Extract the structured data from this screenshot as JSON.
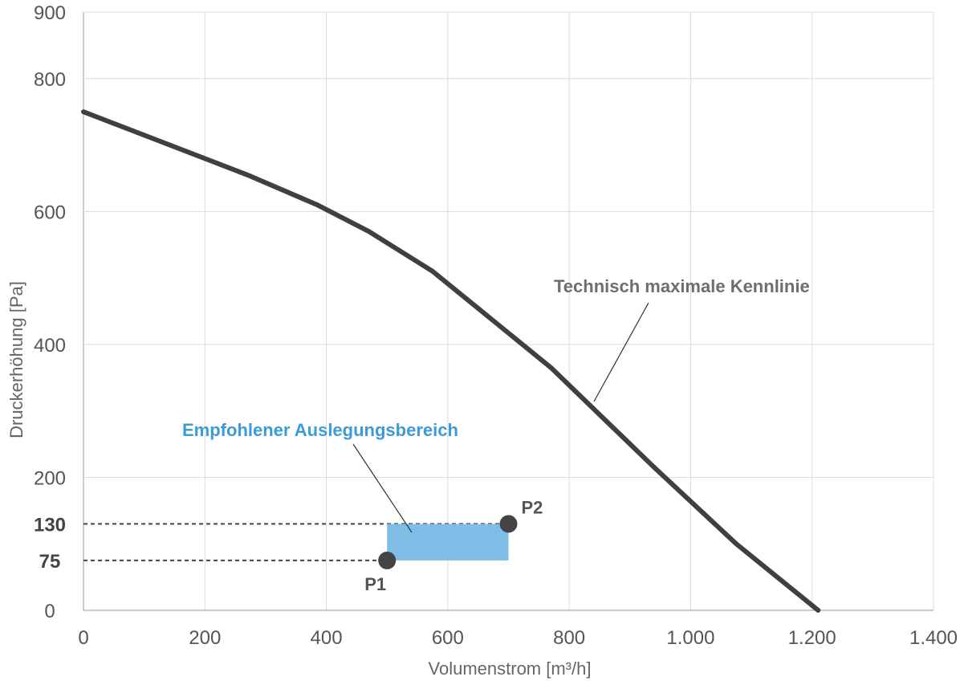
{
  "chart_data": {
    "type": "line",
    "xlabel": "Volumenstrom [m³/h]",
    "ylabel": "Druckerhöhung [Pa]",
    "xlim": [
      0,
      1400
    ],
    "ylim": [
      0,
      900
    ],
    "grid": true,
    "x_ticks": [
      {
        "value": 0,
        "label": "0"
      },
      {
        "value": 200,
        "label": "200"
      },
      {
        "value": 400,
        "label": "400"
      },
      {
        "value": 600,
        "label": "600"
      },
      {
        "value": 800,
        "label": "800"
      },
      {
        "value": 1000,
        "label": "1.000"
      },
      {
        "value": 1200,
        "label": "1.200"
      },
      {
        "value": 1400,
        "label": "1.400"
      }
    ],
    "y_ticks": [
      {
        "value": 0,
        "label": "0"
      },
      {
        "value": 200,
        "label": "200"
      },
      {
        "value": 400,
        "label": "400"
      },
      {
        "value": 600,
        "label": "600"
      },
      {
        "value": 800,
        "label": "800"
      },
      {
        "value": 900,
        "label": "900"
      }
    ],
    "y_ticks_emphasized": [
      {
        "value": 75,
        "label": "75"
      },
      {
        "value": 130,
        "label": "130"
      }
    ],
    "series": [
      {
        "name": "Technisch maximale Kennlinie",
        "color": "#404040",
        "x": [
          0,
          270,
          385,
          470,
          575,
          770,
          940,
          1075,
          1210
        ],
        "y": [
          750,
          655,
          610,
          570,
          510,
          365,
          215,
          100,
          0
        ]
      }
    ],
    "region": {
      "name": "Empfohlener Auslegungsbereich",
      "color": "#7fbde6",
      "x": [
        500,
        700
      ],
      "y": [
        75,
        130
      ]
    },
    "points": [
      {
        "label": "P1",
        "x": 500,
        "y": 75
      },
      {
        "label": "P2",
        "x": 700,
        "y": 130
      }
    ],
    "annotations": {
      "curve_label": "Technisch maximale Kennlinie",
      "region_label": "Empfohlener Auslegungsbereich"
    }
  }
}
